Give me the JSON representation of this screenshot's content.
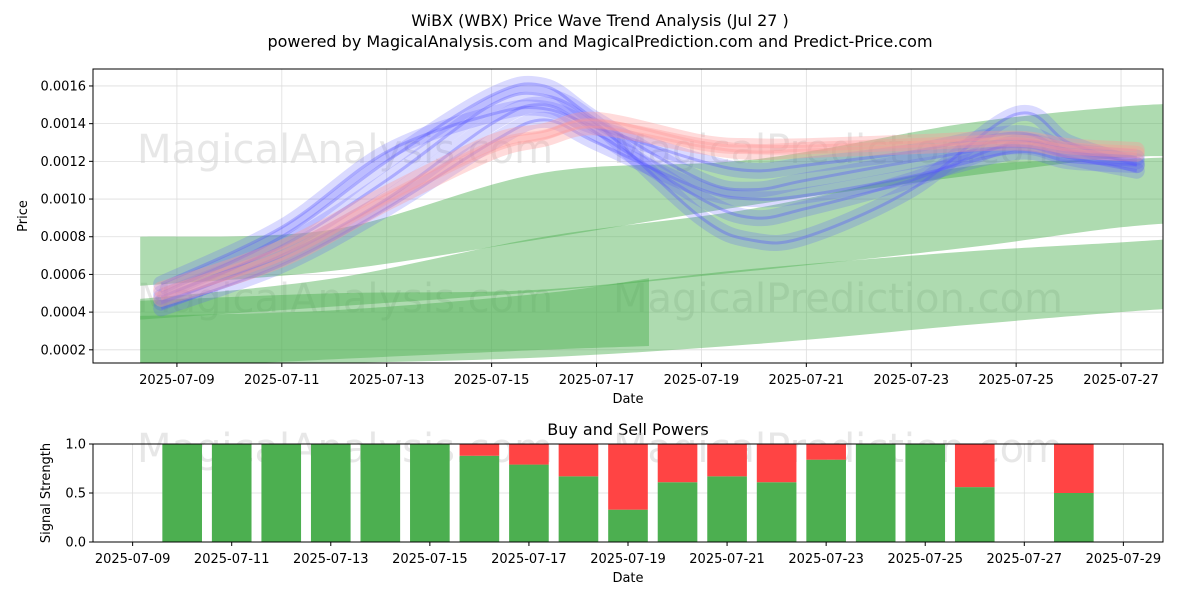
{
  "title_line1": "WiBX (WBX) Price Wave Trend Analysis (Jul 27 )",
  "title_line2": "powered by MagicalAnalysis.com and MagicalPrediction.com and Predict-Price.com",
  "watermarks": [
    "MagicalAnalysis.com",
    "MagicalPrediction.com"
  ],
  "colors": {
    "green_band": "#4caf50",
    "blue_wave": "#5555ff",
    "red_wave": "#ff9999",
    "buy_bar": "#4caf50",
    "sell_bar": "#ff4444",
    "grid": "#dddddd"
  },
  "chart_data": [
    {
      "type": "area",
      "name": "price-wave-chart",
      "xlabel": "Date",
      "ylabel": "Price",
      "grid": true,
      "xlim": [
        -1.6,
        18.8
      ],
      "ylim": [
        0.00013,
        0.00169
      ],
      "x_tick_values": [
        0,
        2,
        4,
        6,
        8,
        10,
        12,
        14,
        16,
        18
      ],
      "x_tick_labels": [
        "2025-07-09",
        "2025-07-11",
        "2025-07-13",
        "2025-07-15",
        "2025-07-17",
        "2025-07-19",
        "2025-07-21",
        "2025-07-23",
        "2025-07-25",
        "2025-07-27"
      ],
      "y_tick_values": [
        0.0002,
        0.0004,
        0.0006,
        0.0008,
        0.001,
        0.0012,
        0.0014,
        0.0016
      ],
      "y_tick_labels": [
        "0.0002",
        "0.0004",
        "0.0006",
        "0.0008",
        "0.0010",
        "0.0012",
        "0.0014",
        "0.0016"
      ],
      "x_index_note": "x values are days since 2025-07-09",
      "trend_bands": [
        {
          "name": "green-band-upper",
          "opacity": 0.45,
          "upper": [
            [
              -0.7,
              0.0008
            ],
            [
              3,
              0.00084
            ],
            [
              7,
              0.00114
            ],
            [
              11,
              0.00121
            ],
            [
              15,
              0.0014
            ],
            [
              18,
              0.00149
            ],
            [
              19.6,
              0.00151
            ]
          ],
          "lower": [
            [
              -0.7,
              0.00054
            ],
            [
              3,
              0.00062
            ],
            [
              7,
              0.00079
            ],
            [
              11,
              0.00097
            ],
            [
              15,
              0.00112
            ],
            [
              18,
              0.00122
            ],
            [
              19.6,
              0.00122
            ]
          ]
        },
        {
          "name": "green-band-middle",
          "opacity": 0.45,
          "upper": [
            [
              -0.7,
              0.00047
            ],
            [
              3,
              0.00058
            ],
            [
              7,
              0.0008
            ],
            [
              11,
              0.00095
            ],
            [
              15,
              0.00117
            ],
            [
              18,
              0.00121
            ],
            [
              19.6,
              0.00123
            ]
          ],
          "lower": [
            [
              -0.7,
              0.00036
            ],
            [
              3,
              0.00043
            ],
            [
              7,
              0.00051
            ],
            [
              11,
              0.00062
            ],
            [
              15,
              0.00074
            ],
            [
              18,
              0.00085
            ],
            [
              19.6,
              0.00088
            ]
          ]
        },
        {
          "name": "green-band-lower",
          "opacity": 0.45,
          "upper": [
            [
              -0.7,
              0.00046
            ],
            [
              3,
              0.0005
            ],
            [
              7,
              0.00052
            ],
            [
              11,
              0.00063
            ],
            [
              15,
              0.00072
            ],
            [
              18,
              0.00077
            ],
            [
              19.6,
              0.0008
            ]
          ],
          "lower": [
            [
              -0.7,
              0.00012
            ],
            [
              3,
              0.00013
            ],
            [
              7,
              0.00016
            ],
            [
              11,
              0.00023
            ],
            [
              15,
              0.00033
            ],
            [
              18,
              0.0004
            ],
            [
              19.6,
              0.00043
            ]
          ]
        },
        {
          "name": "green-band-lowest",
          "opacity": 0.45,
          "upper": [
            [
              -0.7,
              0.00038
            ],
            [
              3,
              0.00041
            ],
            [
              7,
              0.0005
            ],
            [
              9,
              0.00058
            ]
          ],
          "lower": [
            [
              -0.7,
              0.0001
            ],
            [
              3,
              0.00015
            ],
            [
              7,
              0.0002
            ],
            [
              9,
              0.00022
            ]
          ]
        }
      ],
      "wave_series": [
        {
          "name": "blue-wave-1",
          "color": "blue",
          "points": [
            [
              -0.3,
              0.00048
            ],
            [
              2,
              0.00075
            ],
            [
              4,
              0.0011
            ],
            [
              6,
              0.0015
            ],
            [
              7,
              0.00155
            ],
            [
              8,
              0.0014
            ],
            [
              10,
              0.0009
            ],
            [
              11,
              0.00078
            ],
            [
              12,
              0.0008
            ],
            [
              14,
              0.00105
            ],
            [
              16,
              0.00145
            ],
            [
              17,
              0.0013
            ],
            [
              18.3,
              0.00118
            ]
          ]
        },
        {
          "name": "blue-wave-2",
          "color": "blue",
          "points": [
            [
              -0.3,
              0.00045
            ],
            [
              2,
              0.0007
            ],
            [
              4,
              0.001
            ],
            [
              6,
              0.0014
            ],
            [
              7,
              0.0015
            ],
            [
              8,
              0.00135
            ],
            [
              10,
              0.001
            ],
            [
              11,
              0.0009
            ],
            [
              12,
              0.00095
            ],
            [
              14,
              0.0011
            ],
            [
              16,
              0.0013
            ],
            [
              17,
              0.00125
            ],
            [
              18.3,
              0.0012
            ]
          ]
        },
        {
          "name": "blue-wave-3",
          "color": "blue",
          "points": [
            [
              -0.3,
              0.0005
            ],
            [
              2,
              0.0008
            ],
            [
              4,
              0.0012
            ],
            [
              6,
              0.00155
            ],
            [
              7,
              0.0016
            ],
            [
              8,
              0.00142
            ],
            [
              10,
              0.0011
            ],
            [
              11,
              0.00105
            ],
            [
              12,
              0.0011
            ],
            [
              14,
              0.0012
            ],
            [
              16,
              0.00128
            ],
            [
              17,
              0.00122
            ],
            [
              18.3,
              0.00115
            ]
          ]
        },
        {
          "name": "blue-wave-4",
          "color": "blue",
          "points": [
            [
              -0.3,
              0.00042
            ],
            [
              2,
              0.00065
            ],
            [
              4,
              0.00095
            ],
            [
              6,
              0.0013
            ],
            [
              7,
              0.00142
            ],
            [
              8,
              0.0013
            ],
            [
              10,
              0.00105
            ],
            [
              11,
              0.001
            ],
            [
              12,
              0.00102
            ],
            [
              14,
              0.00112
            ],
            [
              16,
              0.00125
            ],
            [
              17,
              0.0012
            ],
            [
              18.3,
              0.00118
            ]
          ]
        },
        {
          "name": "blue-wave-5",
          "color": "blue",
          "points": [
            [
              -0.3,
              0.00055
            ],
            [
              2,
              0.00085
            ],
            [
              4,
              0.00125
            ],
            [
              6,
              0.00145
            ],
            [
              7,
              0.00148
            ],
            [
              8,
              0.00138
            ],
            [
              10,
              0.0012
            ],
            [
              11,
              0.00115
            ],
            [
              12,
              0.00118
            ],
            [
              14,
              0.00125
            ],
            [
              16,
              0.00135
            ],
            [
              17,
              0.00126
            ],
            [
              18.3,
              0.00122
            ]
          ]
        },
        {
          "name": "red-wave-1",
          "color": "red",
          "points": [
            [
              -0.3,
              0.00047
            ],
            [
              2,
              0.00068
            ],
            [
              4,
              0.00098
            ],
            [
              6,
              0.00125
            ],
            [
              7,
              0.00132
            ],
            [
              8,
              0.00138
            ],
            [
              10,
              0.00128
            ],
            [
              11,
              0.00125
            ],
            [
              12,
              0.00126
            ],
            [
              14,
              0.00128
            ],
            [
              16,
              0.0013
            ],
            [
              17,
              0.00126
            ],
            [
              18.3,
              0.00124
            ]
          ]
        },
        {
          "name": "red-wave-2",
          "color": "red",
          "points": [
            [
              -0.3,
              0.00052
            ],
            [
              2,
              0.00074
            ],
            [
              4,
              0.00103
            ],
            [
              6,
              0.0013
            ],
            [
              7,
              0.00136
            ],
            [
              8,
              0.00142
            ],
            [
              10,
              0.0013
            ],
            [
              11,
              0.00128
            ],
            [
              12,
              0.00128
            ],
            [
              14,
              0.0013
            ],
            [
              16,
              0.00132
            ],
            [
              17,
              0.00128
            ],
            [
              18.3,
              0.00126
            ]
          ]
        }
      ]
    },
    {
      "type": "bar",
      "name": "buy-sell-powers-chart",
      "title": "Buy and Sell Powers",
      "xlabel": "Date",
      "ylabel": "Signal Strength",
      "grid": true,
      "xlim": [
        -0.8,
        20.8
      ],
      "ylim": [
        0,
        1
      ],
      "x_tick_values": [
        0,
        2,
        4,
        6,
        8,
        10,
        12,
        14,
        16,
        18,
        20
      ],
      "x_tick_labels": [
        "2025-07-09",
        "2025-07-11",
        "2025-07-13",
        "2025-07-15",
        "2025-07-17",
        "2025-07-19",
        "2025-07-21",
        "2025-07-23",
        "2025-07-25",
        "2025-07-27",
        "2025-07-29"
      ],
      "y_tick_values": [
        0,
        0.5,
        1
      ],
      "y_tick_labels": [
        "0.0",
        "0.5",
        "1.0"
      ],
      "x_index_note": "x values are days since 2025-07-09",
      "categories": [
        "2025-07-10",
        "2025-07-11",
        "2025-07-12",
        "2025-07-13",
        "2025-07-14",
        "2025-07-15",
        "2025-07-16",
        "2025-07-17",
        "2025-07-18",
        "2025-07-19",
        "2025-07-20",
        "2025-07-21",
        "2025-07-22",
        "2025-07-23",
        "2025-07-24",
        "2025-07-25",
        "2025-07-26",
        "2025-07-28"
      ],
      "x": [
        1,
        2,
        3,
        4,
        5,
        6,
        7,
        8,
        9,
        10,
        11,
        12,
        13,
        14,
        15,
        16,
        17,
        19
      ],
      "series": [
        {
          "name": "Buy",
          "values": [
            1.0,
            1.0,
            1.0,
            1.0,
            1.0,
            1.0,
            0.88,
            0.79,
            0.67,
            0.33,
            0.61,
            0.67,
            0.61,
            0.84,
            1.0,
            1.0,
            0.56,
            0.5
          ]
        },
        {
          "name": "Sell",
          "values": [
            0.0,
            0.0,
            0.0,
            0.0,
            0.0,
            0.0,
            0.12,
            0.21,
            0.33,
            0.67,
            0.39,
            0.33,
            0.39,
            0.16,
            0.0,
            0.0,
            0.44,
            0.5
          ]
        }
      ]
    }
  ]
}
